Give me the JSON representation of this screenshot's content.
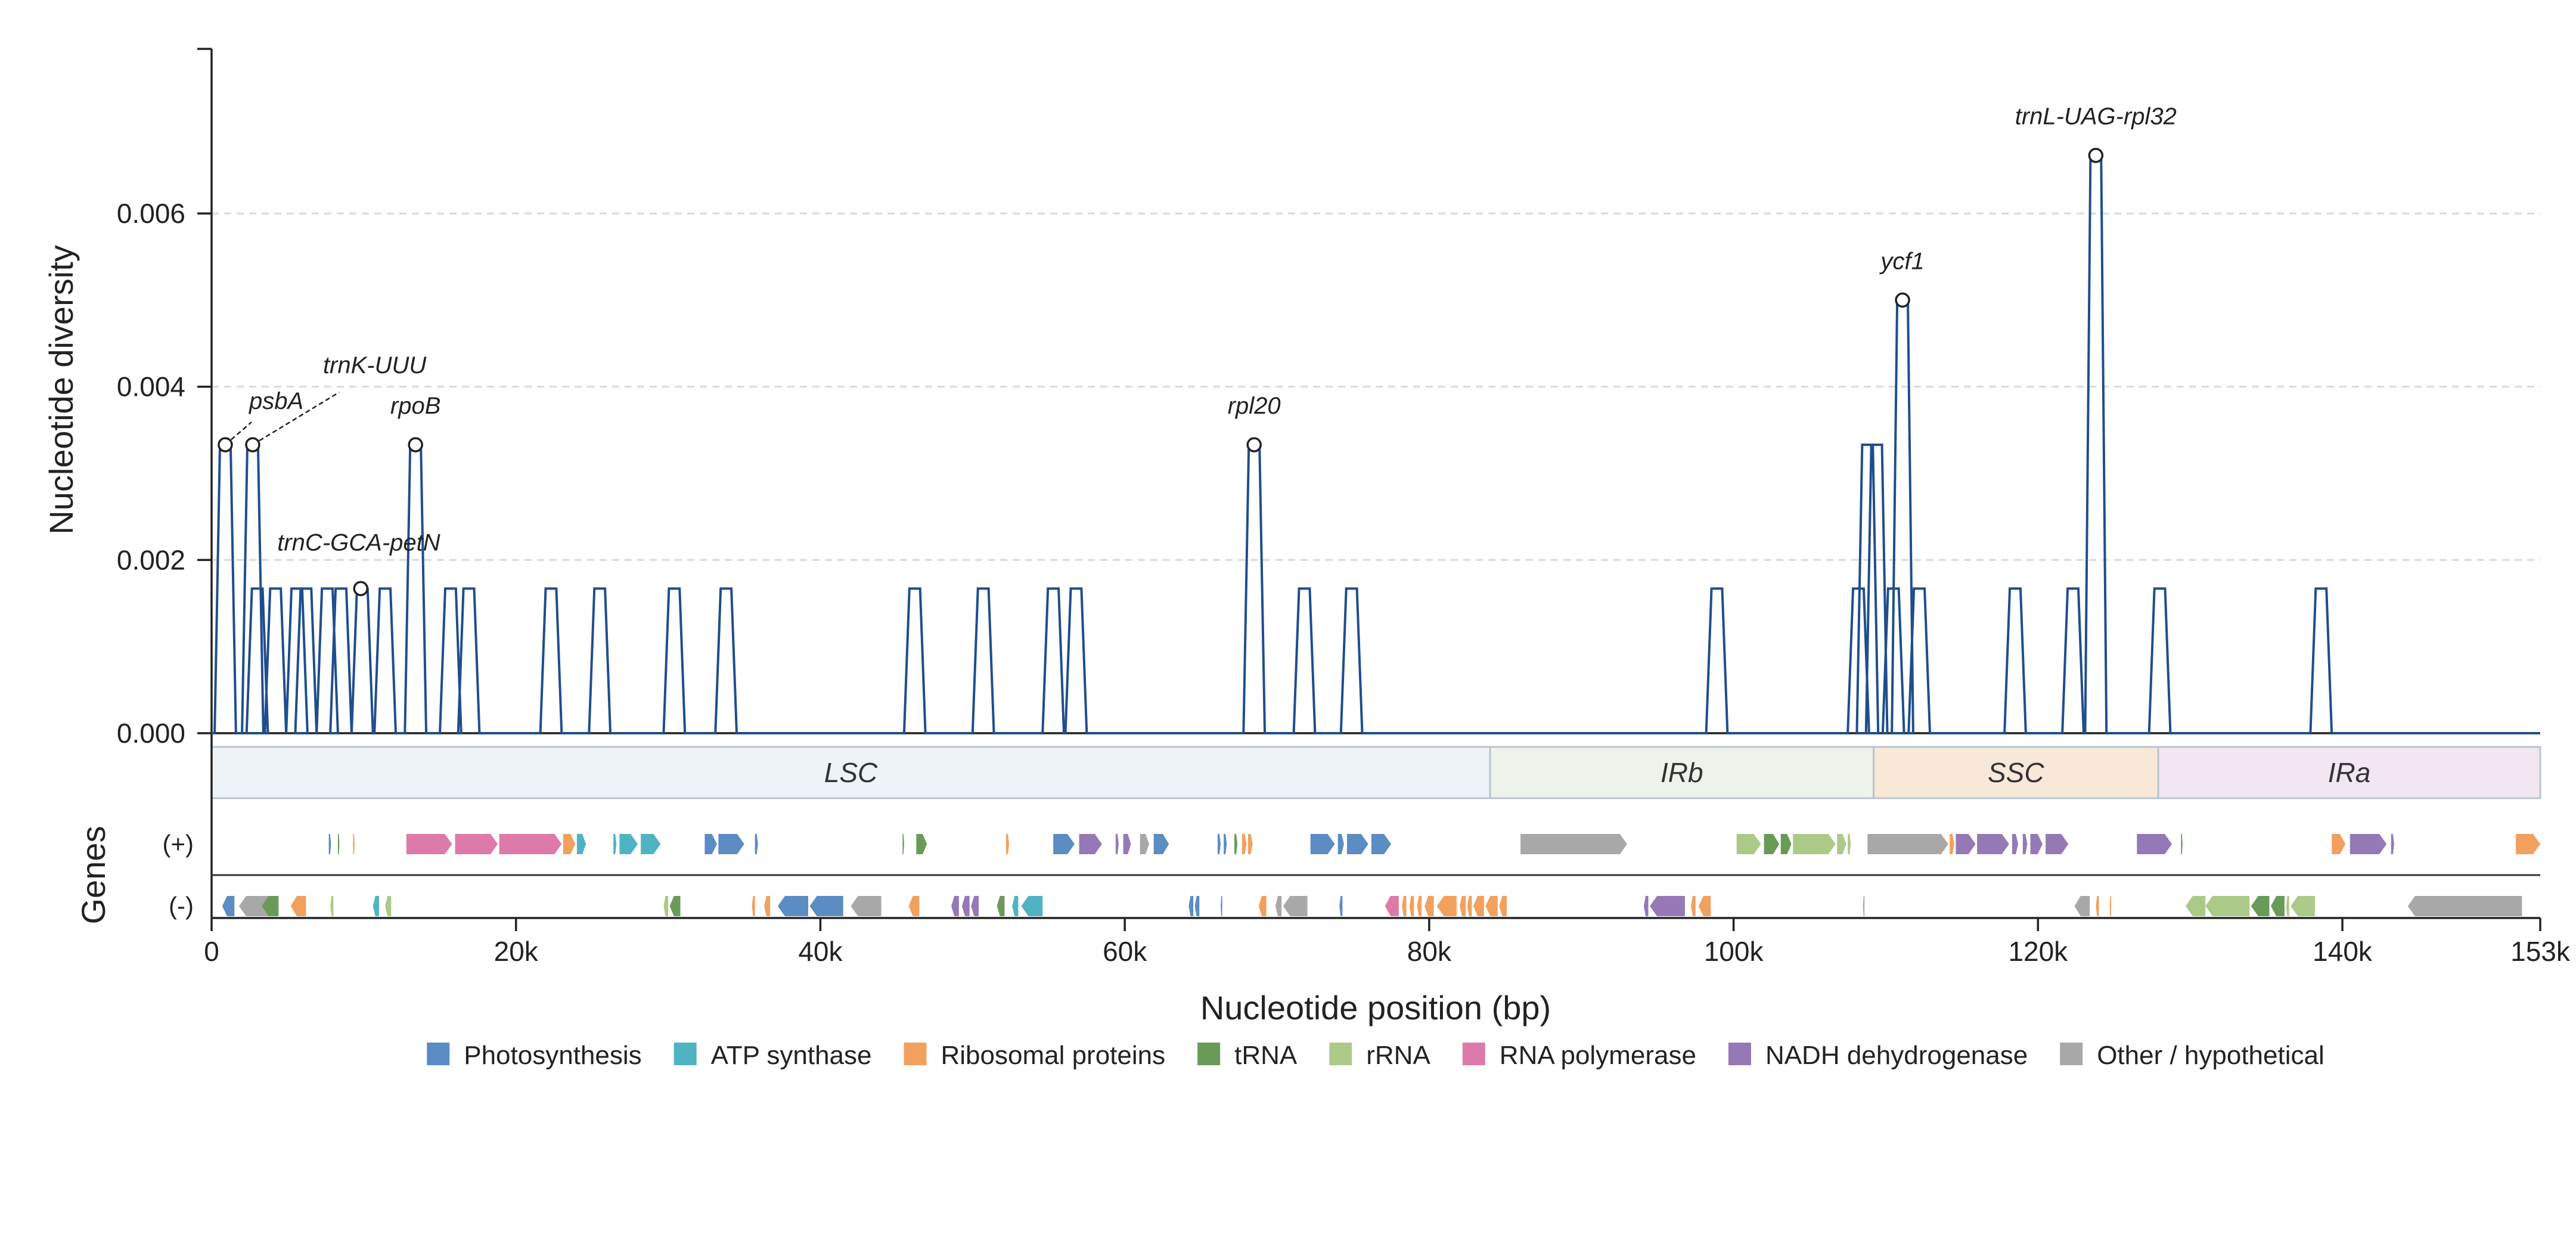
{
  "chart_data": {
    "type": "line",
    "title": "",
    "ylabel": "Nucleotide diversity",
    "xlabel": "Nucleotide position (bp)",
    "genes_label": "Genes",
    "xlim": [
      0,
      153000
    ],
    "ylim": [
      0,
      0.0079
    ],
    "grid": "horizontal dashed",
    "yticks": [
      0,
      0.002,
      0.004,
      0.006
    ],
    "ytick_labels": [
      "0.000",
      "0.002",
      "0.004",
      "0.006"
    ],
    "xticks": [
      0,
      20000,
      40000,
      60000,
      80000,
      100000,
      120000,
      140000,
      153000
    ],
    "xtick_labels": [
      "0",
      "20k",
      "40k",
      "60k",
      "80k",
      "100k",
      "120k",
      "140k",
      "153k"
    ],
    "series": [
      {
        "color": "#1f4e8c",
        "peaks": [
          [
            900,
            0.00333
          ],
          [
            2700,
            0.00333
          ],
          [
            3000,
            0.00167
          ],
          [
            4200,
            0.00167
          ],
          [
            5600,
            0.00167
          ],
          [
            6200,
            0.00167
          ],
          [
            7600,
            0.00167
          ],
          [
            8500,
            0.00167
          ],
          [
            9900,
            0.00167
          ],
          [
            11400,
            0.00167
          ],
          [
            13400,
            0.00333
          ],
          [
            15700,
            0.00167
          ],
          [
            16900,
            0.00167
          ],
          [
            22300,
            0.00167
          ],
          [
            25500,
            0.00167
          ],
          [
            30400,
            0.00167
          ],
          [
            33800,
            0.00167
          ],
          [
            46200,
            0.00167
          ],
          [
            50700,
            0.00167
          ],
          [
            55300,
            0.00167
          ],
          [
            56800,
            0.00167
          ],
          [
            68500,
            0.00333
          ],
          [
            71800,
            0.00167
          ],
          [
            74900,
            0.00167
          ],
          [
            98900,
            0.00167
          ],
          [
            108200,
            0.00167
          ],
          [
            108800,
            0.00333
          ],
          [
            109400,
            0.00333
          ],
          [
            110500,
            0.00167
          ],
          [
            111100,
            0.005
          ],
          [
            112200,
            0.00167
          ],
          [
            118500,
            0.00167
          ],
          [
            122300,
            0.00167
          ],
          [
            123800,
            0.00667
          ],
          [
            128000,
            0.00167
          ],
          [
            138600,
            0.00167
          ]
        ]
      }
    ],
    "annotations": [
      {
        "label": "psbA",
        "x": 900,
        "y": 0.00333,
        "leader": true
      },
      {
        "label": "trnK-UUU",
        "x": 2700,
        "y": 0.00333,
        "leader": true
      },
      {
        "label": "trnC-GCA-petN",
        "x": 9800,
        "y": 0.00167,
        "leader": false
      },
      {
        "label": "rpoB",
        "x": 13400,
        "y": 0.00333,
        "leader": false
      },
      {
        "label": "rpl20",
        "x": 68500,
        "y": 0.00333,
        "leader": false
      },
      {
        "label": "ycf1",
        "x": 111100,
        "y": 0.005,
        "leader": false
      },
      {
        "label": "trnL-UAG-rpl32",
        "x": 123800,
        "y": 0.00667,
        "leader": false
      }
    ],
    "regions": [
      {
        "label": "LSC",
        "start": 0,
        "end": 84000,
        "color": "#eef3f7"
      },
      {
        "label": "IRb",
        "start": 84000,
        "end": 109200,
        "color": "#edf3eb"
      },
      {
        "label": "SSC",
        "start": 109200,
        "end": 127900,
        "color": "#f8e8d8"
      },
      {
        "label": "IRa",
        "start": 127900,
        "end": 153000,
        "color": "#f1e6f1"
      }
    ],
    "strands": [
      "(+)",
      "(-)"
    ],
    "categories": [
      {
        "name": "Photosynthesis",
        "color": "#5b8cc4"
      },
      {
        "name": "ATP synthase",
        "color": "#4fb3c2"
      },
      {
        "name": "Ribosomal proteins",
        "color": "#f2a05e"
      },
      {
        "name": "tRNA",
        "color": "#6a9a58"
      },
      {
        "name": "rRNA",
        "color": "#abca88"
      },
      {
        "name": "RNA polymerase",
        "color": "#de7aa9"
      },
      {
        "name": "NADH dehydrogenase",
        "color": "#9579b6"
      },
      {
        "name": "Other / hypothetical",
        "color": "#a8a8a8"
      }
    ],
    "genes": [
      [
        7700,
        7850,
        "+",
        0
      ],
      [
        8300,
        8400,
        "+",
        3
      ],
      [
        9300,
        9400,
        "+",
        2
      ],
      [
        12800,
        15800,
        "+",
        5
      ],
      [
        16000,
        18800,
        "+",
        5
      ],
      [
        18900,
        23000,
        "+",
        5
      ],
      [
        23100,
        23900,
        "+",
        2
      ],
      [
        24000,
        24600,
        "+",
        1
      ],
      [
        26400,
        26600,
        "+",
        1
      ],
      [
        26800,
        28000,
        "+",
        1
      ],
      [
        28200,
        29500,
        "+",
        1
      ],
      [
        32400,
        33200,
        "+",
        0
      ],
      [
        33300,
        35000,
        "+",
        0
      ],
      [
        35700,
        35900,
        "+",
        0
      ],
      [
        45400,
        45500,
        "+",
        3
      ],
      [
        46300,
        47000,
        "+",
        3
      ],
      [
        52200,
        52400,
        "+",
        2
      ],
      [
        55300,
        56700,
        "+",
        0
      ],
      [
        57000,
        58500,
        "+",
        6
      ],
      [
        59400,
        59600,
        "+",
        6
      ],
      [
        59900,
        60400,
        "+",
        6
      ],
      [
        61000,
        61600,
        "+",
        7
      ],
      [
        61900,
        62900,
        "+",
        0
      ],
      [
        66100,
        66300,
        "+",
        0
      ],
      [
        66500,
        66700,
        "+",
        0
      ],
      [
        67200,
        67400,
        "+",
        3
      ],
      [
        67700,
        68000,
        "+",
        2
      ],
      [
        68100,
        68400,
        "+",
        2
      ],
      [
        72200,
        73800,
        "+",
        0
      ],
      [
        74000,
        74400,
        "+",
        0
      ],
      [
        74600,
        76000,
        "+",
        0
      ],
      [
        76200,
        77500,
        "+",
        0
      ],
      [
        86000,
        93000,
        "+",
        7
      ],
      [
        100200,
        101800,
        "+",
        4
      ],
      [
        102000,
        103000,
        "+",
        3
      ],
      [
        103100,
        103800,
        "+",
        3
      ],
      [
        103900,
        106700,
        "+",
        4
      ],
      [
        106800,
        107400,
        "+",
        4
      ],
      [
        107500,
        107700,
        "+",
        4
      ],
      [
        108800,
        114100,
        "+",
        7
      ],
      [
        114200,
        114500,
        "+",
        2
      ],
      [
        114600,
        115900,
        "+",
        6
      ],
      [
        116000,
        118100,
        "+",
        6
      ],
      [
        118300,
        118700,
        "+",
        6
      ],
      [
        119000,
        119300,
        "+",
        6
      ],
      [
        119500,
        120300,
        "+",
        6
      ],
      [
        120500,
        122000,
        "+",
        6
      ],
      [
        126500,
        128800,
        "+",
        6
      ],
      [
        129400,
        129500,
        "+",
        3
      ],
      [
        139300,
        140200,
        "+",
        2
      ],
      [
        140500,
        142900,
        "+",
        6
      ],
      [
        143200,
        143400,
        "+",
        6
      ],
      [
        151400,
        153000,
        "+",
        2
      ],
      [
        700,
        1500,
        "-",
        0
      ],
      [
        1800,
        4200,
        "-",
        7
      ],
      [
        3300,
        4400,
        "-",
        3
      ],
      [
        5200,
        6200,
        "-",
        2
      ],
      [
        7800,
        8000,
        "-",
        4
      ],
      [
        10600,
        11000,
        "-",
        1
      ],
      [
        11400,
        11800,
        "-",
        4
      ],
      [
        29700,
        30000,
        "-",
        4
      ],
      [
        30100,
        30800,
        "-",
        3
      ],
      [
        35500,
        35700,
        "-",
        2
      ],
      [
        36300,
        36700,
        "-",
        2
      ],
      [
        37200,
        39200,
        "-",
        0
      ],
      [
        39300,
        41500,
        "-",
        0
      ],
      [
        42000,
        44000,
        "-",
        7
      ],
      [
        45800,
        46500,
        "-",
        2
      ],
      [
        48600,
        49100,
        "-",
        6
      ],
      [
        49300,
        49800,
        "-",
        6
      ],
      [
        49900,
        50400,
        "-",
        6
      ],
      [
        51600,
        52100,
        "-",
        3
      ],
      [
        52600,
        53000,
        "-",
        1
      ],
      [
        53200,
        54600,
        "-",
        1
      ],
      [
        64200,
        64500,
        "-",
        0
      ],
      [
        64600,
        64900,
        "-",
        0
      ],
      [
        66300,
        66400,
        "-",
        0
      ],
      [
        68800,
        69300,
        "-",
        2
      ],
      [
        69900,
        70300,
        "-",
        7
      ],
      [
        70400,
        72000,
        "-",
        7
      ],
      [
        74100,
        74300,
        "-",
        0
      ],
      [
        77100,
        78000,
        "-",
        5
      ],
      [
        78200,
        78500,
        "-",
        2
      ],
      [
        78700,
        79000,
        "-",
        2
      ],
      [
        79200,
        79500,
        "-",
        2
      ],
      [
        79700,
        80300,
        "-",
        2
      ],
      [
        80500,
        81800,
        "-",
        2
      ],
      [
        82000,
        82400,
        "-",
        2
      ],
      [
        82500,
        82800,
        "-",
        2
      ],
      [
        82900,
        83600,
        "-",
        2
      ],
      [
        83700,
        84500,
        "-",
        2
      ],
      [
        84600,
        85100,
        "-",
        2
      ],
      [
        94100,
        94400,
        "-",
        6
      ],
      [
        94500,
        96800,
        "-",
        6
      ],
      [
        97200,
        97500,
        "-",
        2
      ],
      [
        97700,
        98500,
        "-",
        2
      ],
      [
        108500,
        108600,
        "-",
        7
      ],
      [
        122400,
        123400,
        "-",
        7
      ],
      [
        123800,
        124000,
        "-",
        2
      ],
      [
        124700,
        124800,
        "-",
        2
      ],
      [
        129700,
        131000,
        "-",
        4
      ],
      [
        131000,
        133900,
        "-",
        4
      ],
      [
        134000,
        135200,
        "-",
        3
      ],
      [
        135300,
        136200,
        "-",
        3
      ],
      [
        136300,
        136500,
        "-",
        4
      ],
      [
        136600,
        138200,
        "-",
        4
      ],
      [
        144300,
        151800,
        "-",
        7
      ]
    ]
  }
}
